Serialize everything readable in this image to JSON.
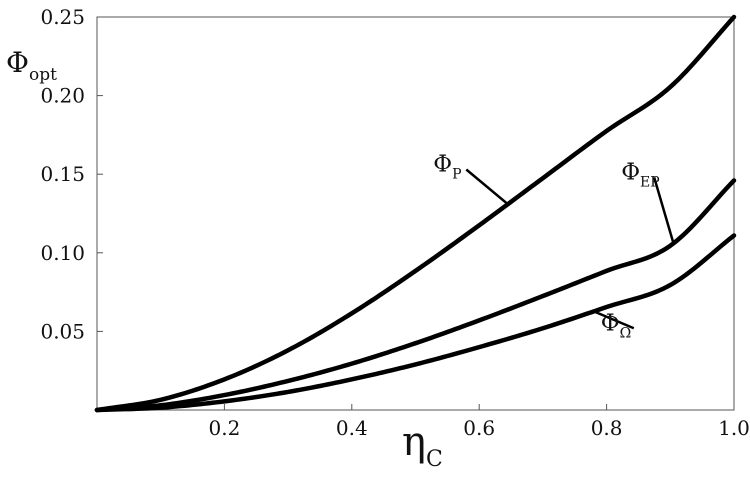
{
  "chart_data": {
    "type": "line",
    "title": "",
    "xlabel": {
      "main": "η",
      "sub": "C"
    },
    "ylabel": {
      "main": "Φ",
      "sub": "opt"
    },
    "xlim": [
      0.0,
      1.0
    ],
    "ylim": [
      0.0,
      0.25
    ],
    "grid": false,
    "legend": "none",
    "x_ticks": [
      0.2,
      0.4,
      0.6,
      0.8,
      1.0
    ],
    "x_tick_labels": [
      "0.2",
      "0.4",
      "0.6",
      "0.8",
      "1.0"
    ],
    "y_ticks": [
      0.05,
      0.1,
      0.15,
      0.2,
      0.25
    ],
    "y_tick_labels": [
      "0.05",
      "0.10",
      "0.15",
      "0.20",
      "0.25"
    ],
    "x": [
      0.0,
      0.1,
      0.2,
      0.3,
      0.4,
      0.5,
      0.6,
      0.7,
      0.8,
      0.9,
      1.0
    ],
    "series": [
      {
        "name": "Φ_P",
        "label_main": "Φ",
        "label_sub": "P",
        "color": "#000000",
        "values": [
          0.0,
          0.0065,
          0.0195,
          0.038,
          0.0615,
          0.0885,
          0.1175,
          0.1475,
          0.1775,
          0.2055,
          0.25
        ],
        "annotation": {
          "point_x": 0.645,
          "label_x": 0.575,
          "label_y": 0.153
        }
      },
      {
        "name": "Φ_EP",
        "label_main": "Φ",
        "label_sub": "EP",
        "color": "#000000",
        "values": [
          0.0,
          0.003,
          0.0095,
          0.0185,
          0.0295,
          0.0425,
          0.057,
          0.0725,
          0.0885,
          0.1045,
          0.146
        ],
        "annotation": {
          "point_x": 0.905,
          "label_x": 0.87,
          "label_y": 0.148
        }
      },
      {
        "name": "Φ_Ω",
        "label_main": "Φ",
        "label_sub": "Ω",
        "color": "#000000",
        "values": [
          0.0,
          0.0015,
          0.0055,
          0.0115,
          0.0195,
          0.029,
          0.04,
          0.052,
          0.0655,
          0.0795,
          0.111
        ],
        "annotation": {
          "point_x": 0.78,
          "label_x": 0.838,
          "label_y": 0.052
        }
      }
    ]
  }
}
